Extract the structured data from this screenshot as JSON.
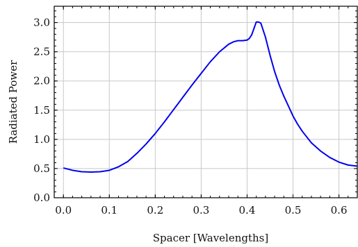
{
  "chart_data": {
    "type": "line",
    "title": "",
    "xlabel": "Spacer [Wavelengths]",
    "ylabel": "Radiated Power",
    "xlim": [
      -0.02,
      0.64
    ],
    "ylim": [
      0.0,
      3.28
    ],
    "grid": true,
    "x_ticks": [
      0.0,
      0.1,
      0.2,
      0.3,
      0.4,
      0.5,
      0.6
    ],
    "x_tick_labels": [
      "0.0",
      "0.1",
      "0.2",
      "0.3",
      "0.4",
      "0.5",
      "0.6"
    ],
    "y_ticks": [
      0.0,
      0.5,
      1.0,
      1.5,
      2.0,
      2.5,
      3.0
    ],
    "y_tick_labels": [
      "0.0",
      "0.5",
      "1.0",
      "1.5",
      "2.0",
      "2.5",
      "3.0"
    ],
    "series": [
      {
        "color": "#0000ee",
        "x": [
          0.0,
          0.02,
          0.04,
          0.06,
          0.08,
          0.1,
          0.12,
          0.14,
          0.16,
          0.18,
          0.2,
          0.22,
          0.24,
          0.26,
          0.28,
          0.3,
          0.32,
          0.34,
          0.36,
          0.37,
          0.38,
          0.39,
          0.4,
          0.405,
          0.41,
          0.415,
          0.42,
          0.425,
          0.43,
          0.44,
          0.45,
          0.46,
          0.47,
          0.48,
          0.49,
          0.5,
          0.51,
          0.52,
          0.54,
          0.56,
          0.58,
          0.6,
          0.62,
          0.64
        ],
        "y": [
          0.51,
          0.47,
          0.445,
          0.44,
          0.445,
          0.47,
          0.53,
          0.62,
          0.76,
          0.92,
          1.1,
          1.3,
          1.51,
          1.72,
          1.93,
          2.13,
          2.33,
          2.5,
          2.63,
          2.67,
          2.69,
          2.69,
          2.7,
          2.73,
          2.79,
          2.9,
          3.01,
          3.01,
          2.99,
          2.75,
          2.44,
          2.16,
          1.93,
          1.74,
          1.57,
          1.4,
          1.26,
          1.14,
          0.94,
          0.8,
          0.69,
          0.61,
          0.56,
          0.54
        ]
      }
    ]
  }
}
